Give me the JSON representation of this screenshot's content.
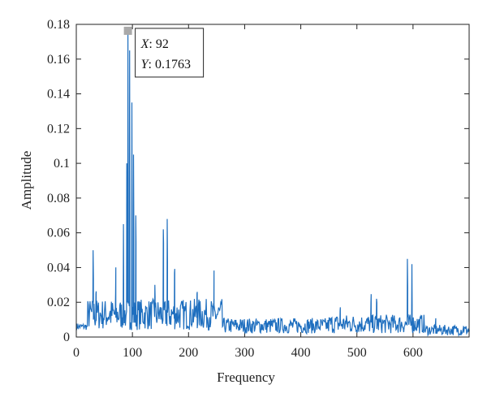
{
  "chart_data": {
    "type": "line",
    "xlabel": "Frequency",
    "ylabel": "Amplitude",
    "xlim": [
      0,
      700
    ],
    "ylim": [
      0,
      0.18
    ],
    "x_ticks": [
      0,
      100,
      200,
      300,
      400,
      500,
      600
    ],
    "y_ticks": [
      0,
      0.02,
      0.04,
      0.06,
      0.08,
      0.1,
      0.12,
      0.14,
      0.16,
      0.18
    ],
    "x_tick_labels": [
      "0",
      "100",
      "200",
      "300",
      "400",
      "500",
      "600"
    ],
    "y_tick_labels": [
      "0",
      "0.02",
      "0.04",
      "0.06",
      "0.08",
      "0.1",
      "0.12",
      "0.14",
      "0.16",
      "0.18"
    ],
    "grid": false,
    "series": [
      {
        "color": "#1f6fbf",
        "peaks": [
          {
            "x": 30,
            "y": 0.05
          },
          {
            "x": 35,
            "y": 0.025
          },
          {
            "x": 70,
            "y": 0.025
          },
          {
            "x": 84,
            "y": 0.065
          },
          {
            "x": 90,
            "y": 0.1
          },
          {
            "x": 92,
            "y": 0.1763
          },
          {
            "x": 95,
            "y": 0.165
          },
          {
            "x": 99,
            "y": 0.135
          },
          {
            "x": 102,
            "y": 0.105
          },
          {
            "x": 106,
            "y": 0.07
          },
          {
            "x": 140,
            "y": 0.03
          },
          {
            "x": 155,
            "y": 0.062
          },
          {
            "x": 162,
            "y": 0.068
          },
          {
            "x": 175,
            "y": 0.037
          },
          {
            "x": 215,
            "y": 0.025
          },
          {
            "x": 245,
            "y": 0.018
          },
          {
            "x": 470,
            "y": 0.015
          },
          {
            "x": 525,
            "y": 0.02
          },
          {
            "x": 535,
            "y": 0.022
          },
          {
            "x": 590,
            "y": 0.045
          },
          {
            "x": 598,
            "y": 0.042
          },
          {
            "x": 640,
            "y": 0.008
          },
          {
            "x": 690,
            "y": 0.006
          }
        ]
      }
    ],
    "datatip": {
      "x": 92,
      "y": 0.1763,
      "x_label": "X",
      "y_label": "Y",
      "x_value": "92",
      "y_value": "0.1763"
    }
  }
}
